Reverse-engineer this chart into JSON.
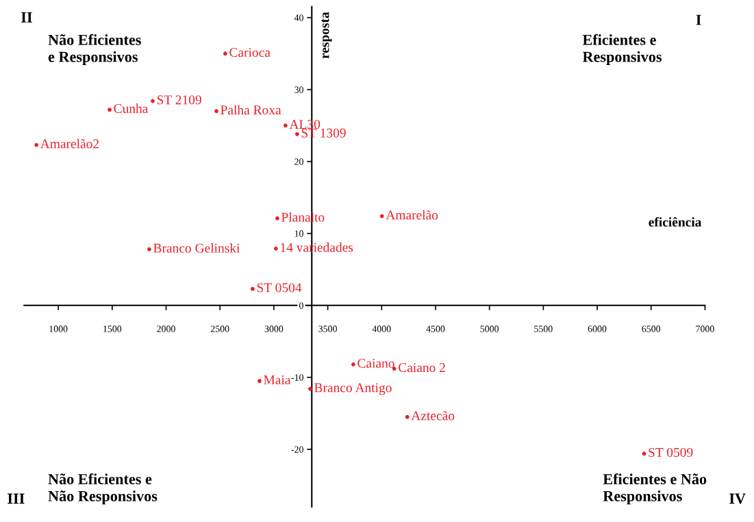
{
  "chart_data": {
    "type": "scatter",
    "xlabel": "eficiência",
    "ylabel": "resposta",
    "xlim": [
      683,
      7000
    ],
    "ylim": [
      -28,
      41.5
    ],
    "xticks": [
      1000,
      1500,
      2000,
      2500,
      3000,
      3500,
      4000,
      4500,
      5000,
      5500,
      6000,
      6500,
      7000
    ],
    "yticks": [
      -20,
      -10,
      0,
      10,
      20,
      30,
      40
    ],
    "grid": false,
    "legend": false,
    "marker": "circle",
    "series": [
      {
        "color": "#e8212b",
        "x": [
          2549,
          1876,
          1476,
          2467,
          3108,
          3216,
          797,
          3032,
          4003,
          1844,
          3019,
          2803,
          3737,
          4117,
          2867,
          3337,
          4238,
          6435
        ],
        "values": [
          35.0,
          28.4,
          27.2,
          27.0,
          25.0,
          23.8,
          22.3,
          12.1,
          12.4,
          7.8,
          7.9,
          2.3,
          -8.2,
          -8.8,
          -10.5,
          -11.6,
          -15.5,
          -20.6
        ]
      }
    ],
    "annotations": [
      {
        "text": "Carioca",
        "x": 2549,
        "y": 35.0
      },
      {
        "text": "ST 2109",
        "x": 1876,
        "y": 28.4
      },
      {
        "text": "Cunha",
        "x": 1476,
        "y": 27.2
      },
      {
        "text": "Palha Roxa",
        "x": 2467,
        "y": 27.0
      },
      {
        "text": "AL30",
        "x": 3108,
        "y": 25.0
      },
      {
        "text": "ST 1309",
        "x": 3216,
        "y": 23.8
      },
      {
        "text": "Amarelão2",
        "x": 797,
        "y": 22.3
      },
      {
        "text": "Planalto",
        "x": 3032,
        "y": 12.1
      },
      {
        "text": "Amarelão",
        "x": 4003,
        "y": 12.4
      },
      {
        "text": "Branco Gelinski",
        "x": 1844,
        "y": 7.8
      },
      {
        "text": "14 variedades",
        "x": 3019,
        "y": 7.9
      },
      {
        "text": "ST 0504",
        "x": 2803,
        "y": 2.3
      },
      {
        "text": "Caiano",
        "x": 3737,
        "y": -8.2
      },
      {
        "text": "Caiano 2",
        "x": 4117,
        "y": -8.8
      },
      {
        "text": "Maia",
        "x": 2867,
        "y": -10.5
      },
      {
        "text": "Branco Antigo",
        "x": 3337,
        "y": -11.6
      },
      {
        "text": "Aztecão",
        "x": 4238,
        "y": -15.5
      },
      {
        "text": "ST 0509",
        "x": 6435,
        "y": -20.6
      },
      "II",
      "Não Eficientes\ne Responsivos",
      "I",
      "Eficientes e\nResponsivos",
      "III",
      "Não Eficientes e\nNão Responsivos",
      "IV",
      "Eficientes e Não\nResponsivos"
    ]
  }
}
